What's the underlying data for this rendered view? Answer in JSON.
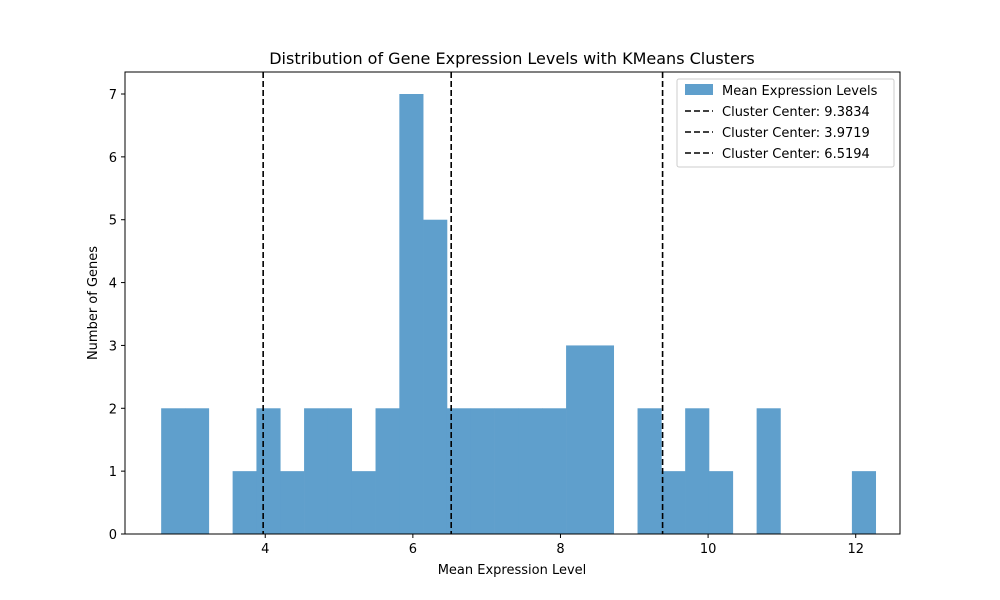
{
  "chart_data": {
    "type": "bar",
    "subtype": "histogram",
    "title": "Distribution of Gene Expression Levels with KMeans Clusters",
    "xlabel": "Mean Expression Level",
    "ylabel": "Number of Genes",
    "xlim": [
      2.1,
      12.6
    ],
    "ylim": [
      0,
      7.35
    ],
    "xticks": [
      4,
      6,
      8,
      10,
      12
    ],
    "yticks": [
      0,
      1,
      2,
      3,
      4,
      5,
      6,
      7
    ],
    "grid": false,
    "legend_position": "top-right",
    "bar_color": "#5f9fcc",
    "bin_start": 2.59,
    "bin_width": 0.3227,
    "counts": [
      2,
      2,
      0,
      1,
      2,
      1,
      2,
      2,
      1,
      2,
      7,
      5,
      2,
      2,
      2,
      2,
      2,
      3,
      3,
      0,
      2,
      1,
      2,
      1,
      0,
      2,
      0,
      0,
      0,
      1
    ],
    "series": [
      {
        "name": "Mean Expression Levels",
        "color": "#5f9fcc",
        "kind": "bars"
      }
    ],
    "vlines": [
      {
        "name": "Cluster Center: 9.3834",
        "x": 9.3834,
        "color": "#000000",
        "style": "dashed"
      },
      {
        "name": "Cluster Center: 3.9719",
        "x": 3.9719,
        "color": "#000000",
        "style": "dashed"
      },
      {
        "name": "Cluster Center: 6.5194",
        "x": 6.5194,
        "color": "#000000",
        "style": "dashed"
      }
    ]
  }
}
